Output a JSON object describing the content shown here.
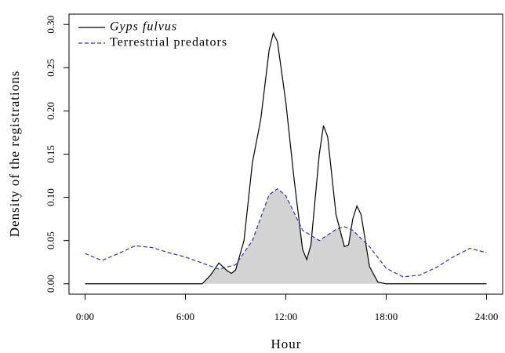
{
  "chart_data": {
    "type": "line",
    "xlabel": "Hour",
    "ylabel": "Density of the registrations",
    "xlim": [
      -0.96,
      24.96
    ],
    "ylim": [
      -0.012,
      0.312
    ],
    "xticks": [
      {
        "value": 0,
        "label": "0:00"
      },
      {
        "value": 6,
        "label": "6:00"
      },
      {
        "value": 12,
        "label": "12:00"
      },
      {
        "value": 18,
        "label": "18:00"
      },
      {
        "value": 24,
        "label": "24:00"
      }
    ],
    "yticks": [
      {
        "value": 0,
        "label": "0.00"
      },
      {
        "value": 0.05,
        "label": "0.05"
      },
      {
        "value": 0.1,
        "label": "0.10"
      },
      {
        "value": 0.15,
        "label": "0.15"
      },
      {
        "value": 0.2,
        "label": "0.20"
      },
      {
        "value": 0.25,
        "label": "0.25"
      },
      {
        "value": 0.3,
        "label": "0.30"
      }
    ],
    "legend": "top-left",
    "overlap_fill": "#d3d3d3",
    "series": [
      {
        "name": "Gyps fulvus",
        "color": "#000000",
        "italic": true,
        "dashed": false,
        "x": [
          0,
          7,
          7.5,
          8,
          8.5,
          8.75,
          9,
          9.5,
          10,
          10.5,
          11,
          11.25,
          11.5,
          12,
          12.5,
          13,
          13.25,
          13.5,
          14,
          14.25,
          14.5,
          15,
          15.5,
          15.75,
          16,
          16.25,
          16.5,
          17,
          17.5,
          18,
          24
        ],
        "values": [
          0,
          0,
          0.01,
          0.024,
          0.015,
          0.012,
          0.016,
          0.05,
          0.14,
          0.19,
          0.27,
          0.29,
          0.28,
          0.21,
          0.12,
          0.04,
          0.028,
          0.045,
          0.15,
          0.183,
          0.17,
          0.08,
          0.043,
          0.045,
          0.075,
          0.09,
          0.08,
          0.02,
          0.002,
          0,
          0
        ]
      },
      {
        "name": "Terrestrial predators",
        "color": "#3333aa",
        "italic": false,
        "dashed": true,
        "x": [
          0,
          1,
          2,
          3,
          4,
          5,
          6,
          7,
          8,
          9,
          10,
          11,
          11.5,
          12,
          13,
          14,
          15,
          15.5,
          16,
          17,
          18,
          19,
          20,
          21,
          22,
          23,
          24
        ],
        "values": [
          0.035,
          0.027,
          0.035,
          0.044,
          0.042,
          0.036,
          0.031,
          0.024,
          0.017,
          0.022,
          0.05,
          0.103,
          0.11,
          0.102,
          0.062,
          0.05,
          0.063,
          0.066,
          0.062,
          0.043,
          0.018,
          0.008,
          0.01,
          0.019,
          0.031,
          0.041,
          0.036
        ]
      }
    ]
  }
}
